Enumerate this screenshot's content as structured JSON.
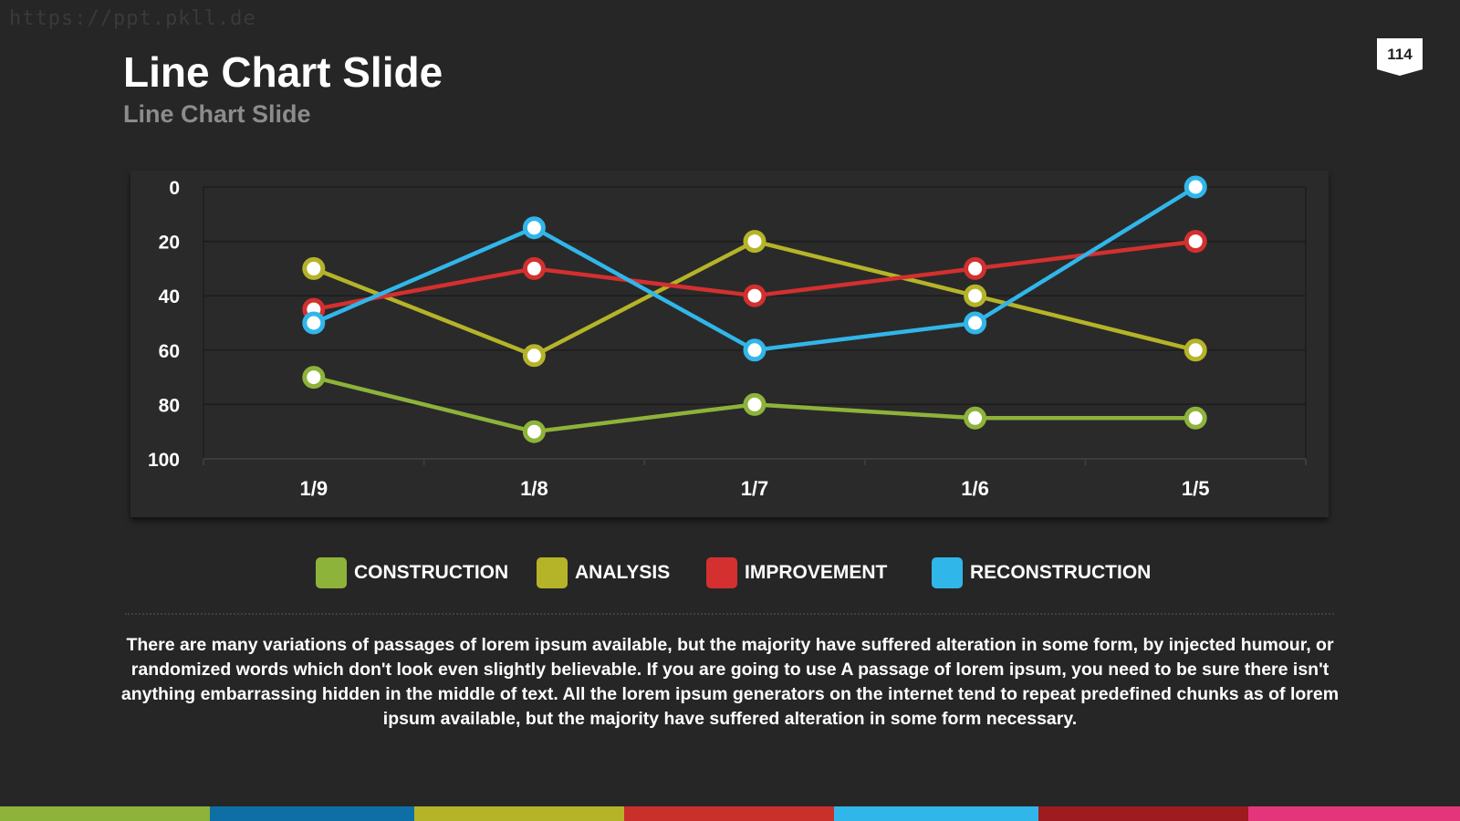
{
  "slide": {
    "watermark": "https://ppt.pkll.de",
    "title": "Line Chart Slide",
    "subtitle": "Line Chart Slide",
    "page_number": "114",
    "body_text": "There are many variations of passages of lorem ipsum available, but the majority have suffered alteration in some form, by injected humour, or randomized words which don't look even slightly believable. If you are going to use A passage of lorem ipsum, you need to be sure there isn't anything embarrassing hidden in the middle of text. All the lorem ipsum generators on the internet tend to repeat predefined chunks as of lorem ipsum available, but the majority have suffered alteration in some form  necessary.",
    "background_color": "#262626",
    "bottom_bar_colors": [
      "#8db33a",
      "#0e6fa6",
      "#b5b428",
      "#c9302c",
      "#31b6ea",
      "#9e1b20",
      "#e5357a"
    ]
  },
  "chart_data": {
    "type": "line",
    "categories": [
      "1/9",
      "1/8",
      "1/7",
      "1/6",
      "1/5"
    ],
    "y_axis": {
      "ticks": [
        0,
        20,
        40,
        60,
        80,
        100
      ],
      "ylim": [
        0,
        100
      ],
      "reversed": true
    },
    "grid": true,
    "legend_position": "bottom",
    "series": [
      {
        "name": "CONSTRUCTION",
        "color": "#8db33a",
        "values": [
          70,
          90,
          80,
          85,
          85
        ]
      },
      {
        "name": "ANALYSIS",
        "color": "#b5b428",
        "values": [
          30,
          62,
          20,
          40,
          60
        ]
      },
      {
        "name": "IMPROVEMENT",
        "color": "#d3302f",
        "values": [
          45,
          30,
          40,
          30,
          20
        ]
      },
      {
        "name": "RECONSTRUCTION",
        "color": "#31b6ea",
        "values": [
          50,
          15,
          60,
          50,
          0
        ]
      }
    ]
  }
}
